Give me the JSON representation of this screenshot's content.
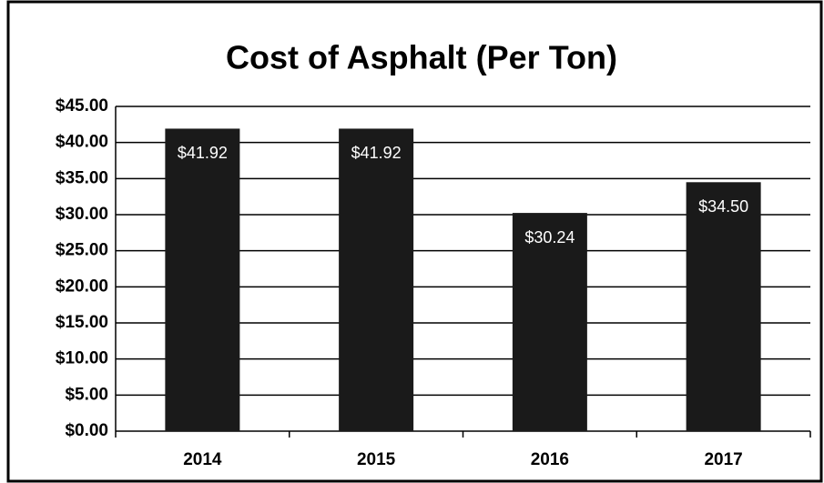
{
  "chart_data": {
    "type": "bar",
    "title": "Cost of Asphalt (Per Ton)",
    "categories": [
      "2014",
      "2015",
      "2016",
      "2017"
    ],
    "values": [
      41.92,
      41.92,
      30.24,
      34.5
    ],
    "value_labels": [
      "$41.92",
      "$41.92",
      "$30.24",
      "$34.50"
    ],
    "color": "#1a1a1a",
    "ylim": [
      0,
      45
    ],
    "yticks": [
      {
        "value": 0,
        "label": "$0.00"
      },
      {
        "value": 5,
        "label": "$5.00"
      },
      {
        "value": 10,
        "label": "$10.00"
      },
      {
        "value": 15,
        "label": "$15.00"
      },
      {
        "value": 20,
        "label": "$20.00"
      },
      {
        "value": 25,
        "label": "$25.00"
      },
      {
        "value": 30,
        "label": "$30.00"
      },
      {
        "value": 35,
        "label": "$35.00"
      },
      {
        "value": 40,
        "label": "$40.00"
      },
      {
        "value": 45,
        "label": "$45.00"
      }
    ],
    "grid": true
  }
}
